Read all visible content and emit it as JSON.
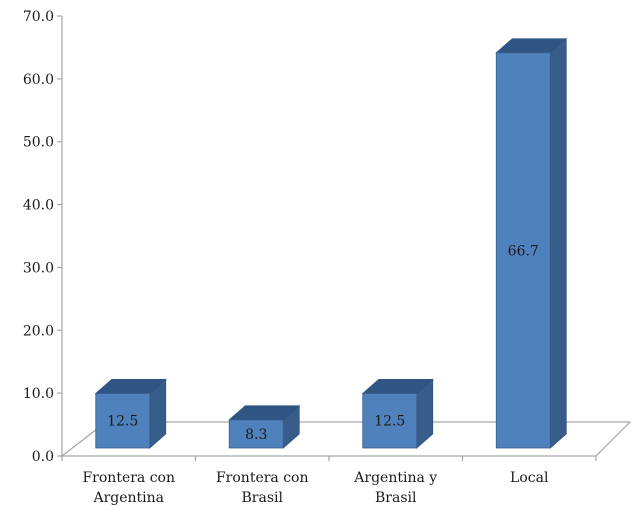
{
  "chart_data": {
    "type": "bar",
    "categories": [
      [
        "Frontera con",
        "Argentina"
      ],
      [
        "Frontera con",
        "Brasil"
      ],
      [
        "Argentina y",
        "Brasil"
      ],
      [
        "Local"
      ]
    ],
    "values": [
      12.5,
      8.3,
      12.5,
      66.7
    ],
    "data_labels": [
      "12.5",
      "8.3",
      "12.5",
      "66.7"
    ],
    "ylim": [
      0,
      70
    ],
    "yticks": [
      "0.0",
      "10.0",
      "20.0",
      "30.0",
      "40.0",
      "50.0",
      "60.0",
      "70.0"
    ],
    "grid": false,
    "legend": false,
    "three_d": true,
    "title": "",
    "xlabel": "",
    "ylabel": ""
  },
  "colors": {
    "bar_front": "#4F81BD",
    "bar_side": "#385D8A",
    "bar_top": "#2E5583",
    "axis": "#a6a6a6"
  }
}
